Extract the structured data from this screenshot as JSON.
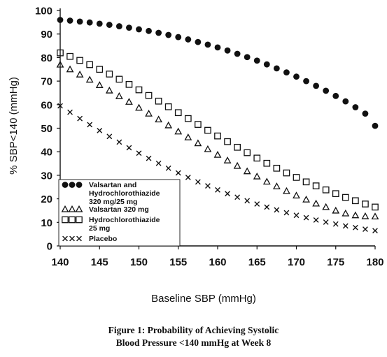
{
  "chart_data": {
    "type": "scatter",
    "x": [
      140,
      141.25,
      142.5,
      143.75,
      145,
      146.25,
      147.5,
      148.75,
      150,
      151.25,
      152.5,
      153.75,
      155,
      156.25,
      157.5,
      158.75,
      160,
      161.25,
      162.5,
      163.75,
      165,
      166.25,
      167.5,
      168.75,
      170,
      171.25,
      172.5,
      173.75,
      175,
      176.25,
      177.5,
      178.75,
      180
    ],
    "series": [
      {
        "name": "Valsartan and Hydrochlorothiazide 320 mg/25 mg",
        "marker": "filled-circle",
        "values": [
          96,
          95.7,
          95.3,
          94.9,
          94.4,
          93.9,
          93.3,
          92.7,
          92,
          91.3,
          90.5,
          89.6,
          88.7,
          87.7,
          86.6,
          85.5,
          84.3,
          83,
          81.6,
          80.2,
          78.7,
          77.1,
          75.4,
          73.7,
          71.9,
          70,
          68,
          65.9,
          63.7,
          61.4,
          58.9,
          56.2,
          51
        ]
      },
      {
        "name": "Valsartan 320 mg",
        "marker": "triangle",
        "values": [
          77,
          75,
          72.8,
          70.6,
          68.3,
          66,
          63.6,
          61.2,
          58.7,
          56.2,
          53.7,
          51.2,
          48.6,
          46.1,
          43.6,
          41.1,
          38.7,
          36.3,
          34,
          31.7,
          29.5,
          27.3,
          25.3,
          23.3,
          21.4,
          19.7,
          18,
          16.5,
          15,
          13.8,
          13,
          12.6,
          12.5
        ]
      },
      {
        "name": "Hydrochlorothiazide 25 mg",
        "marker": "square",
        "values": [
          82,
          80.5,
          78.8,
          77,
          75,
          73,
          70.8,
          68.6,
          66.3,
          63.9,
          61.5,
          59.1,
          56.6,
          54.1,
          51.6,
          49.1,
          46.7,
          44.3,
          41.9,
          39.6,
          37.3,
          35.1,
          33,
          31,
          29.1,
          27.2,
          25.5,
          23.8,
          22.2,
          20.6,
          19.2,
          17.8,
          16.5
        ]
      },
      {
        "name": "Placebo",
        "marker": "x",
        "values": [
          59.5,
          56.8,
          54.1,
          51.5,
          49,
          46.5,
          44.1,
          41.7,
          39.4,
          37.2,
          35.1,
          33,
          31,
          29.1,
          27.2,
          25.5,
          23.8,
          22.2,
          20.7,
          19.2,
          17.8,
          16.5,
          15.3,
          14.1,
          13,
          12,
          11,
          10.1,
          9.3,
          8.5,
          7.8,
          7.1,
          6.5
        ]
      }
    ],
    "xlabel": "Baseline SBP (mmHg)",
    "ylabel": "% SBP<140 (mmHg)",
    "xlim": [
      140,
      180
    ],
    "ylim": [
      0,
      100
    ],
    "xticks": [
      140,
      145,
      150,
      155,
      160,
      165,
      170,
      175,
      180
    ],
    "yticks": [
      0,
      10,
      20,
      30,
      40,
      50,
      60,
      70,
      80,
      90,
      100
    ],
    "grid": false,
    "legend_position": "bottom-left",
    "legend_entries": [
      {
        "lines": [
          "Valsartan and",
          "Hydrochlorothiazide",
          "320 mg/25 mg"
        ]
      },
      {
        "lines": [
          "Valsartan 320 mg"
        ]
      },
      {
        "lines": [
          "Hydrochlorothiazide",
          "25 mg"
        ]
      },
      {
        "lines": [
          "Placebo"
        ]
      }
    ]
  },
  "caption": {
    "line1": "Figure 1: Probability of Achieving Systolic",
    "line2": "Blood Pressure <140 mmHg at Week 8"
  },
  "colors": {
    "ink": "#111111",
    "background": "#ffffff"
  }
}
